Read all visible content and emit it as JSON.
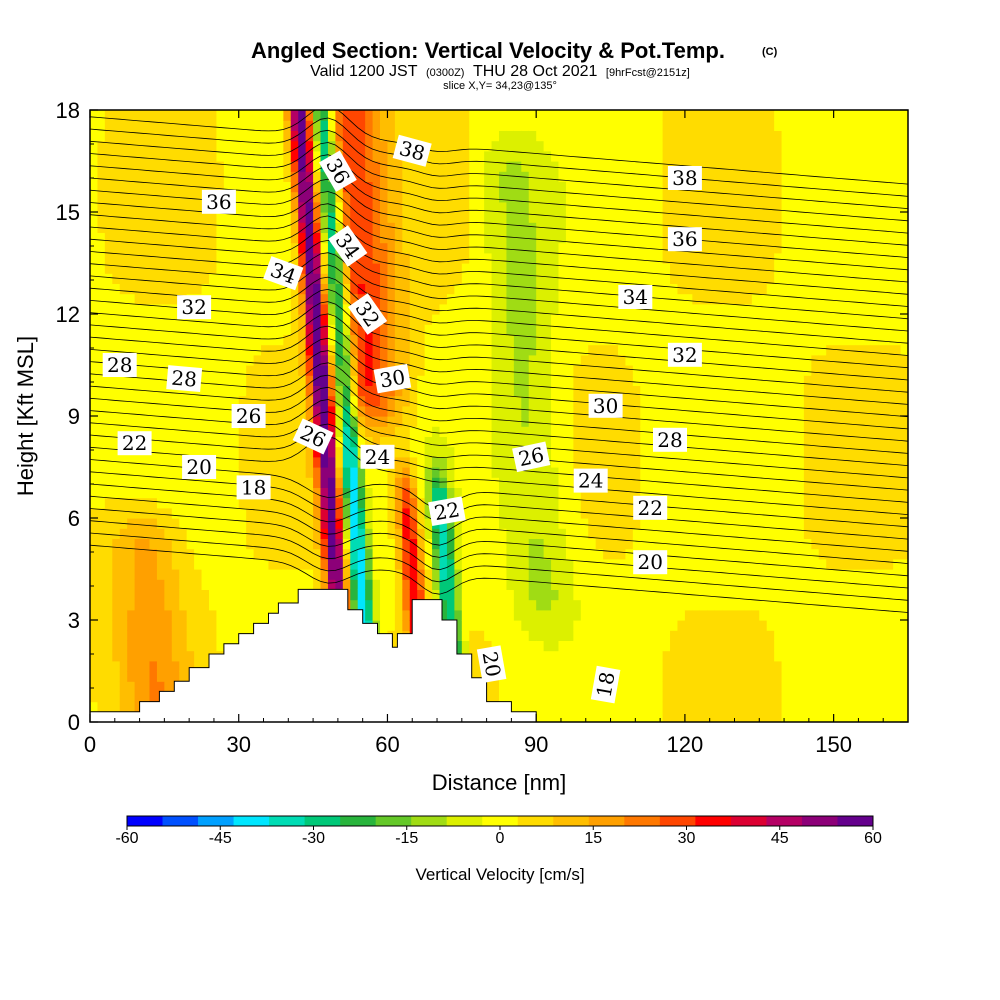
{
  "header": {
    "title": "Angled Section: Vertical Velocity & Pot.Temp.",
    "copyright": "(C)",
    "valid_prefix": "Valid 1200 JST",
    "valid_utc": "(0300Z)",
    "valid_date": "THU 28 Oct 2021",
    "forecast": "[9hrFcst@2151z]",
    "slice": "slice X,Y= 34,23@135°"
  },
  "chart_data": {
    "type": "heatmap",
    "title": "Angled Section: Vertical Velocity & Pot.Temp.",
    "xlabel": "Distance [nm]",
    "ylabel": "Height [Kft MSL]",
    "xlim": [
      0,
      165
    ],
    "ylim": [
      0,
      18
    ],
    "x_ticks": [
      "0",
      "30",
      "60",
      "90",
      "120",
      "150"
    ],
    "y_ticks": [
      "0",
      "3",
      "6",
      "9",
      "12",
      "15",
      "18"
    ],
    "colorbar": {
      "label": "Vertical Velocity [cm/s]",
      "range": [
        -60,
        60
      ],
      "ticks": [
        "-60",
        "-45",
        "-30",
        "-15",
        "0",
        "15",
        "30",
        "45",
        "60"
      ],
      "colors": [
        "#0000ff",
        "#0050ff",
        "#00a0ff",
        "#00e6ff",
        "#00dcb4",
        "#00c878",
        "#28b43c",
        "#64c828",
        "#a0dc14",
        "#dcf000",
        "#ffff00",
        "#ffdc00",
        "#ffbe00",
        "#ffa000",
        "#ff7800",
        "#ff4600",
        "#ff0000",
        "#dc0032",
        "#b40064",
        "#8c0078",
        "#64008c"
      ]
    },
    "field_features": [
      {
        "kind": "updraft",
        "x": 46,
        "y_range": [
          4,
          18
        ],
        "value": 55
      },
      {
        "kind": "downdraft",
        "x": 51,
        "y_range": [
          3,
          18
        ],
        "value": -45
      },
      {
        "kind": "updraft",
        "x": 54,
        "y_range": [
          10,
          18
        ],
        "value": 30
      },
      {
        "kind": "updraft",
        "x": 65,
        "y_range": [
          3,
          6
        ],
        "value": 35
      },
      {
        "kind": "downdraft",
        "x": 72,
        "y_range": [
          2,
          6
        ],
        "value": -35
      },
      {
        "kind": "weak_updraft",
        "x": 12,
        "y_range": [
          1,
          5
        ],
        "value": 15
      },
      {
        "kind": "weak_downdraft",
        "x": 88,
        "y_range": [
          4,
          16
        ],
        "value": -12
      }
    ],
    "terrain": [
      [
        0,
        0.3
      ],
      [
        10,
        0.3
      ],
      [
        10,
        0.6
      ],
      [
        14,
        0.6
      ],
      [
        14,
        0.9
      ],
      [
        17,
        0.9
      ],
      [
        17,
        1.2
      ],
      [
        20,
        1.2
      ],
      [
        20,
        1.6
      ],
      [
        24,
        1.6
      ],
      [
        24,
        2
      ],
      [
        27,
        2
      ],
      [
        27,
        2.3
      ],
      [
        30,
        2.3
      ],
      [
        30,
        2.6
      ],
      [
        33,
        2.6
      ],
      [
        33,
        2.9
      ],
      [
        36,
        2.9
      ],
      [
        36,
        3.2
      ],
      [
        38,
        3.2
      ],
      [
        38,
        3.5
      ],
      [
        42,
        3.5
      ],
      [
        42,
        3.9
      ],
      [
        52,
        3.9
      ],
      [
        52,
        3.3
      ],
      [
        55,
        3.3
      ],
      [
        55,
        2.9
      ],
      [
        58,
        2.9
      ],
      [
        58,
        2.6
      ],
      [
        61,
        2.6
      ],
      [
        61,
        2.2
      ],
      [
        62,
        2.2
      ],
      [
        62,
        2.6
      ],
      [
        65,
        2.6
      ],
      [
        65,
        3.6
      ],
      [
        71,
        3.6
      ],
      [
        71,
        3.0
      ],
      [
        74,
        3.0
      ],
      [
        74,
        2.0
      ],
      [
        77,
        2.0
      ],
      [
        77,
        1.3
      ],
      [
        80,
        1.3
      ],
      [
        80,
        0.6
      ],
      [
        85,
        0.6
      ],
      [
        85,
        0.3
      ],
      [
        90,
        0.3
      ],
      [
        90,
        0
      ],
      [
        165,
        0
      ]
    ],
    "theta_labels": [
      {
        "text": "38",
        "x": 65,
        "y": 16.8,
        "angle": 15
      },
      {
        "text": "38",
        "x": 120,
        "y": 16.0,
        "angle": 0
      },
      {
        "text": "36",
        "x": 26,
        "y": 15.3,
        "angle": 0
      },
      {
        "text": "36",
        "x": 50,
        "y": 16.2,
        "angle": 60
      },
      {
        "text": "36",
        "x": 120,
        "y": 14.2,
        "angle": 0
      },
      {
        "text": "34",
        "x": 39,
        "y": 13.2,
        "angle": 20
      },
      {
        "text": "34",
        "x": 52,
        "y": 14.0,
        "angle": 55
      },
      {
        "text": "34",
        "x": 110,
        "y": 12.5,
        "angle": 0
      },
      {
        "text": "32",
        "x": 21,
        "y": 12.2,
        "angle": 0
      },
      {
        "text": "32",
        "x": 56,
        "y": 12.0,
        "angle": 55
      },
      {
        "text": "32",
        "x": 120,
        "y": 10.8,
        "angle": 0
      },
      {
        "text": "30",
        "x": 61,
        "y": 10.1,
        "angle": -10
      },
      {
        "text": "30",
        "x": 104,
        "y": 9.3,
        "angle": 0
      },
      {
        "text": "28",
        "x": 6,
        "y": 10.5,
        "angle": 0
      },
      {
        "text": "28",
        "x": 19,
        "y": 10.1,
        "angle": 5
      },
      {
        "text": "28",
        "x": 117,
        "y": 8.3,
        "angle": 0
      },
      {
        "text": "26",
        "x": 32,
        "y": 9.0,
        "angle": 0
      },
      {
        "text": "26",
        "x": 45,
        "y": 8.4,
        "angle": 25
      },
      {
        "text": "26",
        "x": 89,
        "y": 7.8,
        "angle": -12
      },
      {
        "text": "24",
        "x": 58,
        "y": 7.8,
        "angle": 0
      },
      {
        "text": "24",
        "x": 101,
        "y": 7.1,
        "angle": 0
      },
      {
        "text": "22",
        "x": 9,
        "y": 8.2,
        "angle": 0
      },
      {
        "text": "22",
        "x": 72,
        "y": 6.2,
        "angle": -10
      },
      {
        "text": "22",
        "x": 113,
        "y": 6.3,
        "angle": 0
      },
      {
        "text": "20",
        "x": 22,
        "y": 7.5,
        "angle": 0
      },
      {
        "text": "20",
        "x": 81,
        "y": 1.7,
        "angle": 80
      },
      {
        "text": "20",
        "x": 113,
        "y": 4.7,
        "angle": 0
      },
      {
        "text": "18",
        "x": 33,
        "y": 6.9,
        "angle": 0
      },
      {
        "text": "18",
        "x": 104,
        "y": 1.1,
        "angle": -80
      }
    ]
  }
}
